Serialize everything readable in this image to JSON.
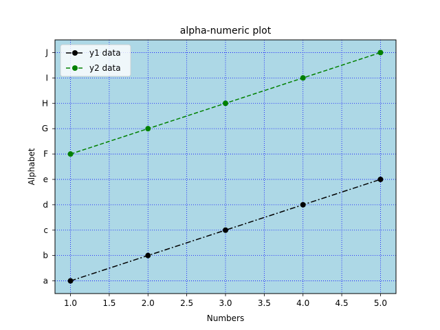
{
  "chart_data": {
    "type": "line",
    "title": "alpha-numeric plot",
    "xlabel": "Numbers",
    "ylabel": "Alphabet",
    "x": [
      1,
      2,
      3,
      4,
      5
    ],
    "xlim": [
      0.8,
      5.2
    ],
    "xticks": [
      "1.0",
      "1.5",
      "2.0",
      "2.5",
      "3.0",
      "3.5",
      "4.0",
      "4.5",
      "5.0"
    ],
    "ycategories": [
      "a",
      "b",
      "c",
      "d",
      "e",
      "F",
      "G",
      "H",
      "I",
      "J"
    ],
    "grid": true,
    "legend_position": "top-left",
    "background_color": "#add8e6",
    "grid_color": "#0000ff",
    "series": [
      {
        "name": "y1 data",
        "y": [
          "a",
          "b",
          "c",
          "d",
          "e"
        ],
        "color": "#000000",
        "linestyle": "dashdot",
        "marker": "circle"
      },
      {
        "name": "y2 data",
        "y": [
          "F",
          "G",
          "H",
          "I",
          "J"
        ],
        "color": "#008000",
        "linestyle": "dashed",
        "marker": "circle"
      }
    ]
  }
}
